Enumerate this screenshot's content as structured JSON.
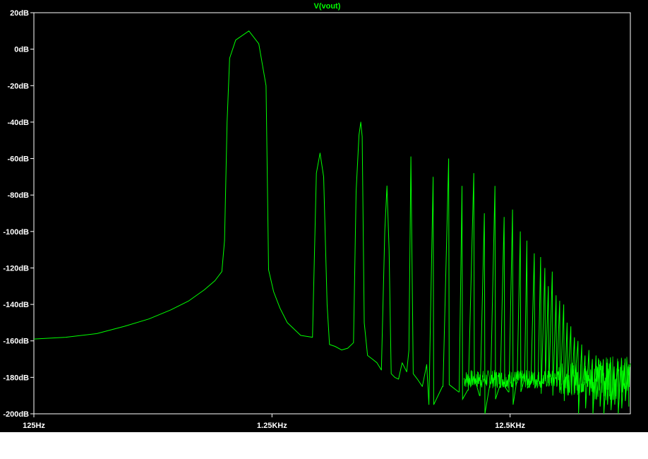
{
  "chart_data": {
    "type": "line",
    "title": "V(vout)",
    "x_scale": "log",
    "x_range_hz": [
      125,
      40000
    ],
    "y_range_db": [
      -200,
      20
    ],
    "y_ticks": [
      "20dB",
      "0dB",
      "-20dB",
      "-40dB",
      "-60dB",
      "-80dB",
      "-100dB",
      "-120dB",
      "-140dB",
      "-160dB",
      "-180dB",
      "-200dB"
    ],
    "y_tick_values": [
      20,
      0,
      -20,
      -40,
      -60,
      -80,
      -100,
      -120,
      -140,
      -160,
      -180,
      -200
    ],
    "x_ticks": [
      "125Hz",
      "1.25KHz",
      "12.5KHz"
    ],
    "x_tick_values": [
      125,
      1250,
      12500
    ],
    "grid": false,
    "fundamental": {
      "freq_hz": 1000,
      "peak_db": 10
    },
    "spectrum_points": [
      [
        125,
        -159
      ],
      [
        170,
        -158
      ],
      [
        230,
        -156
      ],
      [
        300,
        -152
      ],
      [
        380,
        -148
      ],
      [
        470,
        -143
      ],
      [
        560,
        -138
      ],
      [
        650,
        -132
      ],
      [
        720,
        -127
      ],
      [
        770,
        -122
      ],
      [
        790,
        -105
      ],
      [
        810,
        -40
      ],
      [
        830,
        -5
      ],
      [
        880,
        5
      ],
      [
        1000,
        10
      ],
      [
        1100,
        3
      ],
      [
        1180,
        -20
      ],
      [
        1210,
        -121
      ],
      [
        1270,
        -133
      ],
      [
        1350,
        -142
      ],
      [
        1450,
        -150
      ],
      [
        1650,
        -157
      ],
      [
        1850,
        -158
      ],
      [
        1920,
        -68
      ],
      [
        1990,
        -57
      ],
      [
        2060,
        -70
      ],
      [
        2130,
        -140
      ],
      [
        2180,
        -162
      ],
      [
        2300,
        -163
      ],
      [
        2450,
        -165
      ],
      [
        2600,
        -164
      ],
      [
        2750,
        -161
      ],
      [
        2820,
        -78
      ],
      [
        2900,
        -47
      ],
      [
        2950,
        -40
      ],
      [
        2990,
        -48
      ],
      [
        3050,
        -150
      ],
      [
        3150,
        -168
      ],
      [
        3300,
        -170
      ],
      [
        3450,
        -172
      ],
      [
        3600,
        -176
      ],
      [
        3720,
        -100
      ],
      [
        3800,
        -75
      ],
      [
        3880,
        -110
      ],
      [
        3960,
        -178
      ],
      [
        4100,
        -180
      ],
      [
        4250,
        -181
      ],
      [
        4400,
        -172
      ],
      [
        4600,
        -177
      ],
      [
        4700,
        -165
      ],
      [
        4790,
        -59
      ],
      [
        4900,
        -178
      ],
      [
        5100,
        -181
      ],
      [
        5350,
        -185
      ],
      [
        5580,
        -173
      ],
      [
        5700,
        -195
      ]
    ],
    "harmonic_spikes": [
      [
        5940,
        -70,
        -195
      ],
      [
        6500,
        -185,
        -185
      ],
      [
        6900,
        -60,
        -184
      ],
      [
        7600,
        -188,
        -188
      ],
      [
        7850,
        -75,
        -192
      ],
      [
        8300,
        -187,
        -187
      ],
      [
        8800,
        -68,
        -180
      ],
      [
        9300,
        -190,
        -190
      ],
      [
        9750,
        -90,
        -200
      ],
      [
        10300,
        -183,
        -183
      ],
      [
        10800,
        -75,
        -192
      ],
      [
        11300,
        -185,
        -185
      ],
      [
        11800,
        -92,
        -185
      ],
      [
        12300,
        -188,
        -188
      ],
      [
        12800,
        -88,
        -195
      ],
      [
        13300,
        -183,
        -183
      ],
      [
        13800,
        -100,
        -188
      ],
      [
        14300,
        -182,
        -182
      ],
      [
        14700,
        -105,
        -186
      ],
      [
        15200,
        -183,
        -183
      ],
      [
        15800,
        -112,
        -186
      ],
      [
        16300,
        -182,
        -182
      ],
      [
        16800,
        -114,
        -189
      ],
      [
        17500,
        -120,
        -181
      ],
      [
        18100,
        -130,
        -185
      ],
      [
        18800,
        -122,
        -190
      ],
      [
        19500,
        -135,
        -183
      ],
      [
        20200,
        -138,
        -187
      ],
      [
        21000,
        -140,
        -193
      ],
      [
        21700,
        -150,
        -185
      ],
      [
        22500,
        -152,
        -189
      ],
      [
        23300,
        -158,
        -181
      ],
      [
        24100,
        -160,
        -200
      ],
      [
        25000,
        -162,
        -188
      ],
      [
        25800,
        -168,
        -197
      ],
      [
        26800,
        -165,
        -190
      ],
      [
        27700,
        -170,
        -200
      ],
      [
        28700,
        -168,
        -192
      ],
      [
        29700,
        -173,
        -196
      ],
      [
        30800,
        -170,
        -200
      ],
      [
        31900,
        -172,
        -195
      ],
      [
        33000,
        -169,
        -198
      ],
      [
        34200,
        -174,
        -195
      ],
      [
        35400,
        -171,
        -200
      ],
      [
        36600,
        -173,
        -197
      ],
      [
        37900,
        -172,
        -193
      ],
      [
        39200,
        -174,
        -196
      ]
    ],
    "colors": {
      "background": "#000000",
      "trace": "#00ff00",
      "axis": "#ffffff",
      "page": "#ffffff"
    }
  }
}
